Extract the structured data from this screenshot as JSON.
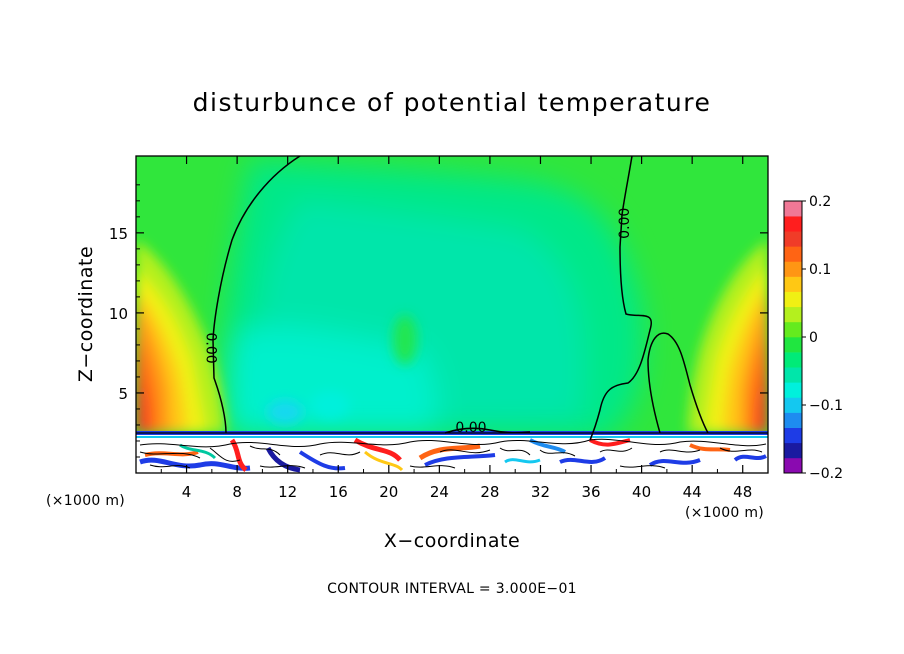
{
  "chart_data": {
    "type": "heatmap",
    "title": "disturbunce of potential temperature",
    "xlabel": "X−coordinate",
    "ylabel": "Z−coordinate",
    "x_unit_left": "(×1000 m)",
    "x_unit_right": "(×1000 m)",
    "xlim": [
      0,
      50
    ],
    "ylim": [
      0,
      19.8
    ],
    "xticks": [
      4,
      8,
      12,
      16,
      20,
      24,
      28,
      32,
      36,
      40,
      44,
      48
    ],
    "yticks": [
      5,
      10,
      15
    ],
    "colorbar": {
      "min": -0.2,
      "max": 0.2,
      "ticks": [
        0.2,
        0.1,
        0,
        -0.1,
        -0.2
      ],
      "tick_labels": [
        "0.2",
        "0.1",
        "0",
        "−0.1",
        "−0.2"
      ],
      "colors": [
        "#8a0ab0",
        "#1a1aa0",
        "#1e3ce6",
        "#1e8cf0",
        "#14c8f0",
        "#00f0dc",
        "#00e6aa",
        "#00eb78",
        "#20e640",
        "#64eb1e",
        "#b4f01e",
        "#f0f014",
        "#ffc814",
        "#ff9614",
        "#ff6414",
        "#f03c28",
        "#ff1e1e",
        "#f07896"
      ]
    },
    "contour_labels": [
      {
        "text": "0.00",
        "x": 5.9,
        "z": 7.8
      },
      {
        "text": "0.00",
        "x": 38.7,
        "z": 15.6
      },
      {
        "text": "0.00",
        "x": 26.5,
        "z": 2.8
      }
    ],
    "contour_interval_label": "CONTOUR INTERVAL = 3.000E−01",
    "summary": "Near-zero (green, ~0 to 0.03) over most of the domain; slightly negative (cyan, ~-0.03 to -0.06) in the middle below z~8; positive (yellow/orange/red, up to ~0.15) near both lateral boundaries x<5 and x>45 between z~3 and z~14; strong small-scale mixed disturbances (-0.2 to 0.2) in the lowest layer z<2.5."
  }
}
